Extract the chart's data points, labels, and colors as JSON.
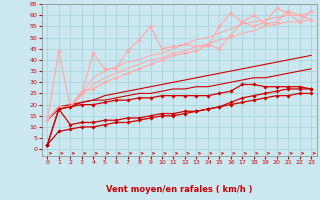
{
  "xlabel": "Vent moyen/en rafales ( km/h )",
  "bg_color": "#cbe8f0",
  "grid_color": "#aad4dc",
  "xlim": [
    -0.5,
    23.5
  ],
  "ylim": [
    -3,
    65
  ],
  "yticks": [
    0,
    5,
    10,
    15,
    20,
    25,
    30,
    35,
    40,
    45,
    50,
    55,
    60,
    65
  ],
  "xticks": [
    0,
    1,
    2,
    3,
    4,
    5,
    6,
    7,
    8,
    9,
    10,
    11,
    12,
    13,
    14,
    15,
    16,
    17,
    18,
    19,
    20,
    21,
    22,
    23
  ],
  "series": [
    {
      "x": [
        0,
        1,
        2,
        3,
        4,
        5,
        6,
        7,
        8,
        9,
        10,
        11,
        12,
        13,
        14,
        15,
        16,
        17,
        18,
        19,
        20,
        21,
        22,
        23
      ],
      "y": [
        2,
        18,
        19,
        20,
        20,
        21,
        22,
        22,
        23,
        23,
        24,
        24,
        24,
        24,
        24,
        25,
        26,
        29,
        29,
        28,
        28,
        28,
        28,
        27
      ],
      "color": "#cc0000",
      "marker": "D",
      "markersize": 1.8,
      "linewidth": 0.9,
      "zorder": 5
    },
    {
      "x": [
        0,
        1,
        2,
        3,
        4,
        5,
        6,
        7,
        8,
        9,
        10,
        11,
        12,
        13,
        14,
        15,
        16,
        17,
        18,
        19,
        20,
        21,
        22,
        23
      ],
      "y": [
        2,
        18,
        11,
        12,
        12,
        13,
        13,
        14,
        14,
        15,
        16,
        16,
        17,
        17,
        18,
        19,
        21,
        23,
        24,
        25,
        26,
        27,
        27,
        27
      ],
      "color": "#cc0000",
      "marker": "D",
      "markersize": 1.8,
      "linewidth": 0.9,
      "zorder": 5
    },
    {
      "x": [
        0,
        1,
        2,
        3,
        4,
        5,
        6,
        7,
        8,
        9,
        10,
        11,
        12,
        13,
        14,
        15,
        16,
        17,
        18,
        19,
        20,
        21,
        22,
        23
      ],
      "y": [
        2,
        8,
        9,
        10,
        10,
        11,
        12,
        12,
        13,
        14,
        15,
        15,
        16,
        17,
        18,
        19,
        20,
        21,
        22,
        23,
        24,
        24,
        25,
        25
      ],
      "color": "#cc0000",
      "marker": "D",
      "markersize": 1.8,
      "linewidth": 0.9,
      "zorder": 5
    },
    {
      "x": [
        0,
        1,
        2,
        3,
        4,
        5,
        6,
        7,
        8,
        9,
        10,
        11,
        12,
        13,
        14,
        15,
        16,
        17,
        18,
        19,
        20,
        21,
        22,
        23
      ],
      "y": [
        13,
        19,
        20,
        21,
        22,
        22,
        23,
        24,
        25,
        25,
        26,
        27,
        27,
        28,
        28,
        29,
        30,
        31,
        32,
        32,
        33,
        34,
        35,
        36
      ],
      "color": "#cc0000",
      "marker": null,
      "linewidth": 0.8,
      "zorder": 3
    },
    {
      "x": [
        0,
        1,
        2,
        3,
        4,
        5,
        6,
        7,
        8,
        9,
        10,
        11,
        12,
        13,
        14,
        15,
        16,
        17,
        18,
        19,
        20,
        21,
        22,
        23
      ],
      "y": [
        13,
        18,
        19,
        21,
        22,
        24,
        25,
        26,
        27,
        28,
        29,
        30,
        31,
        32,
        33,
        34,
        35,
        36,
        37,
        38,
        39,
        40,
        41,
        42
      ],
      "color": "#cc0000",
      "marker": null,
      "linewidth": 0.8,
      "zorder": 3
    },
    {
      "x": [
        0,
        1,
        2,
        3,
        4,
        5,
        6,
        7,
        8,
        9,
        10,
        11,
        12,
        13,
        14,
        15,
        16,
        17,
        18,
        19,
        20,
        21,
        22,
        23
      ],
      "y": [
        13,
        44,
        19,
        26,
        27,
        30,
        32,
        34,
        36,
        38,
        40,
        42,
        43,
        44,
        47,
        45,
        51,
        57,
        60,
        56,
        57,
        62,
        60,
        58
      ],
      "color": "#ffaaaa",
      "marker": "D",
      "markersize": 1.8,
      "linewidth": 0.9,
      "zorder": 4
    },
    {
      "x": [
        0,
        1,
        2,
        3,
        4,
        5,
        6,
        7,
        8,
        9,
        10,
        11,
        12,
        13,
        14,
        15,
        16,
        17,
        18,
        19,
        20,
        21,
        22,
        23
      ],
      "y": [
        13,
        19,
        19,
        25,
        43,
        36,
        36,
        44,
        49,
        55,
        45,
        46,
        47,
        46,
        46,
        55,
        61,
        57,
        55,
        57,
        63,
        61,
        57,
        62
      ],
      "color": "#ffaaaa",
      "marker": "D",
      "markersize": 1.8,
      "linewidth": 0.9,
      "zorder": 4
    },
    {
      "x": [
        0,
        1,
        2,
        3,
        4,
        5,
        6,
        7,
        8,
        9,
        10,
        11,
        12,
        13,
        14,
        15,
        16,
        17,
        18,
        19,
        20,
        21,
        22,
        23
      ],
      "y": [
        13,
        19,
        19,
        25,
        32,
        35,
        37,
        39,
        40,
        42,
        43,
        45,
        47,
        49,
        50,
        52,
        54,
        56,
        57,
        58,
        59,
        60,
        60,
        61
      ],
      "color": "#ffaaaa",
      "marker": null,
      "linewidth": 0.8,
      "zorder": 2
    },
    {
      "x": [
        0,
        1,
        2,
        3,
        4,
        5,
        6,
        7,
        8,
        9,
        10,
        11,
        12,
        13,
        14,
        15,
        16,
        17,
        18,
        19,
        20,
        21,
        22,
        23
      ],
      "y": [
        13,
        19,
        19,
        24,
        29,
        32,
        34,
        36,
        38,
        40,
        41,
        43,
        44,
        46,
        47,
        49,
        50,
        52,
        53,
        55,
        56,
        57,
        57,
        58
      ],
      "color": "#ffaaaa",
      "marker": null,
      "linewidth": 0.8,
      "zorder": 2
    }
  ],
  "xlabel_color": "#cc0000",
  "tick_color": "#cc0000",
  "axis_color": "#888888"
}
